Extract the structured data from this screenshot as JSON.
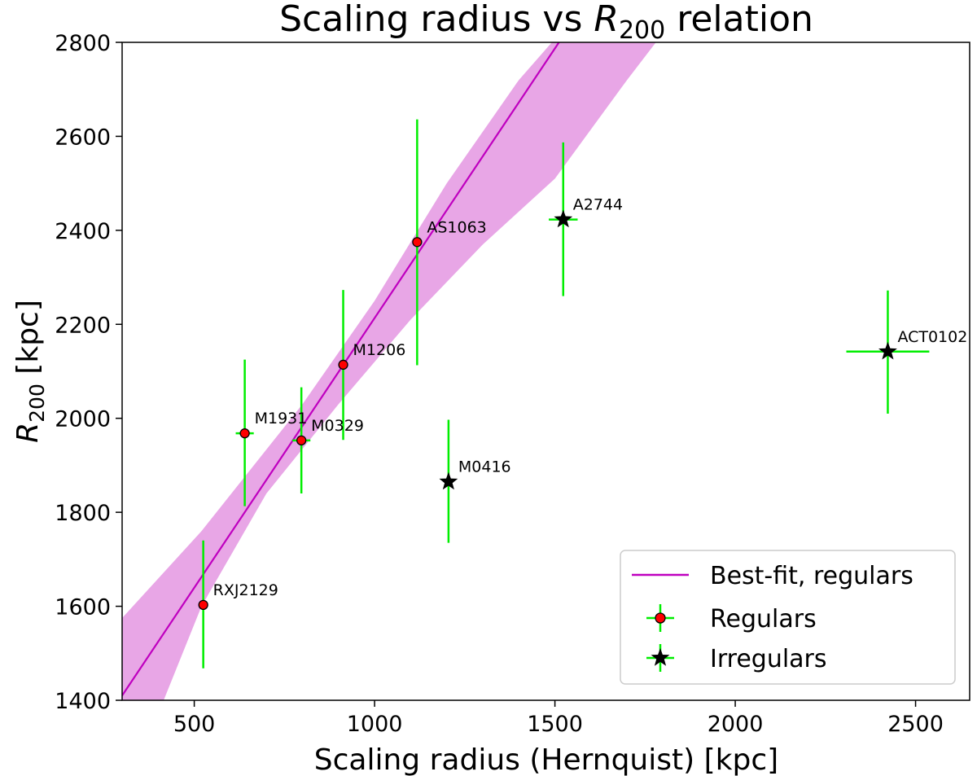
{
  "chart_data": {
    "type": "scatter",
    "title_prefix": "Scaling radius vs ",
    "title_symbol": "R",
    "title_subscript": "200",
    "title_suffix": " relation",
    "xlabel": "Scaling radius (Hernquist) [kpc]",
    "ylabel_symbol": "R",
    "ylabel_subscript": "200",
    "ylabel_suffix": " [kpc]",
    "xlim": [
      300,
      2650
    ],
    "ylim": [
      1400,
      2800
    ],
    "xticks": [
      500,
      1000,
      1500,
      2000,
      2500
    ],
    "yticks": [
      1400,
      1600,
      1800,
      2000,
      2200,
      2400,
      2600,
      2800
    ],
    "grid": false,
    "legend_position": "lower-right",
    "colors": {
      "fit_line": "#bf00bf",
      "band": "#e8a6e6",
      "errorbar": "#00ee00",
      "regular_marker": "#ff0000",
      "irregular_marker": "#000000"
    },
    "best_fit": {
      "name": "Best-fit, regulars",
      "x": [
        300,
        1520
      ],
      "y": [
        1410,
        2810
      ]
    },
    "confidence_band": {
      "upper": [
        [
          300,
          1575
        ],
        [
          520,
          1760
        ],
        [
          800,
          2030
        ],
        [
          1000,
          2250
        ],
        [
          1200,
          2500
        ],
        [
          1400,
          2720
        ],
        [
          1560,
          2860
        ],
        [
          1840,
          2860
        ],
        [
          1700,
          2720
        ],
        [
          1500,
          2510
        ],
        [
          1300,
          2370
        ],
        [
          1100,
          2210
        ],
        [
          900,
          2030
        ],
        [
          700,
          1840
        ],
        [
          520,
          1600
        ],
        [
          410,
          1390
        ],
        [
          300,
          1390
        ]
      ]
    },
    "series": [
      {
        "name": "Regulars",
        "marker": "circle",
        "points": [
          {
            "label": "RXJ2129",
            "x": 525,
            "y": 1603,
            "xerr": 0,
            "yerr_low": 135,
            "yerr_high": 137
          },
          {
            "label": "M1931",
            "x": 640,
            "y": 1968,
            "xerr": 25,
            "yerr_low": 155,
            "yerr_high": 157
          },
          {
            "label": "M0329",
            "x": 797,
            "y": 1953,
            "xerr": 25,
            "yerr_low": 113,
            "yerr_high": 113
          },
          {
            "label": "M1206",
            "x": 913,
            "y": 2114,
            "xerr": 0,
            "yerr_low": 160,
            "yerr_high": 159
          },
          {
            "label": "AS1063",
            "x": 1118,
            "y": 2375,
            "xerr": 0,
            "yerr_low": 262,
            "yerr_high": 261
          }
        ]
      },
      {
        "name": "Irregulars",
        "marker": "star",
        "points": [
          {
            "label": "M0416",
            "x": 1205,
            "y": 1865,
            "xerr": 0,
            "yerr_low": 130,
            "yerr_high": 132
          },
          {
            "label": "A2744",
            "x": 1523,
            "y": 2423,
            "xerr": 40,
            "yerr_low": 163,
            "yerr_high": 164
          },
          {
            "label": "ACT0102",
            "x": 2423,
            "y": 2142,
            "xerr": 115,
            "yerr_low": 132,
            "yerr_high": 130
          }
        ]
      }
    ]
  }
}
